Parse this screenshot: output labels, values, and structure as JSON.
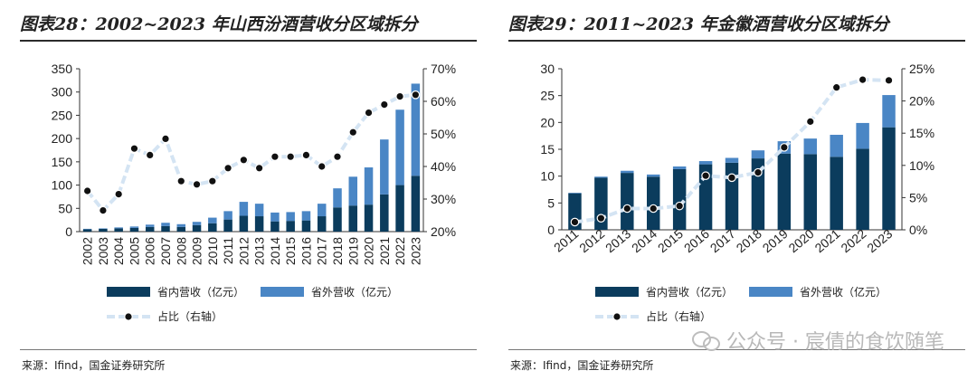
{
  "source_label": "来源：Ifind，国金证券研究所",
  "watermark": "公众号 · 宸倩的食饮随笔",
  "colors": {
    "domestic": "#0b3c5d",
    "foreign": "#4a86c5",
    "ratio_line": "#d4e4f3",
    "marker": "#111111"
  },
  "chart_data": [
    {
      "type": "bar",
      "stacked": true,
      "title": "图表28：2002~2023 年山西汾酒营收分区域拆分",
      "categories": [
        "2002",
        "2003",
        "2004",
        "2005",
        "2006",
        "2007",
        "2008",
        "2009",
        "2010",
        "2011",
        "2012",
        "2013",
        "2014",
        "2015",
        "2016",
        "2017",
        "2018",
        "2019",
        "2020",
        "2021",
        "2022",
        "2023"
      ],
      "series": [
        {
          "name": "省内营收（亿元）",
          "axis": "left",
          "values": [
            5,
            6,
            7,
            8,
            10,
            12,
            10,
            14,
            18,
            26,
            34,
            33,
            22,
            23,
            24,
            33,
            52,
            56,
            58,
            80,
            100,
            120
          ]
        },
        {
          "name": "省外营收（亿元）",
          "axis": "left",
          "values": [
            1,
            1,
            2,
            3,
            5,
            7,
            6,
            7,
            12,
            18,
            30,
            27,
            19,
            19,
            20,
            27,
            41,
            62,
            80,
            118,
            162,
            198
          ]
        },
        {
          "name": "占比（右轴）",
          "type": "line",
          "axis": "right",
          "values": [
            32.5,
            26.5,
            31.5,
            45.5,
            43.5,
            48.5,
            35.5,
            34.5,
            35.5,
            39.5,
            42.0,
            39.5,
            43.0,
            43.0,
            43.5,
            40.0,
            43.0,
            50.5,
            56.5,
            59.0,
            61.5,
            62.0
          ]
        }
      ],
      "y_left": {
        "min": 0,
        "max": 350,
        "ticks": [
          "0",
          "50",
          "100",
          "150",
          "200",
          "250",
          "300",
          "350"
        ]
      },
      "y_right": {
        "min": 20,
        "max": 70,
        "ticks": [
          "20%",
          "30%",
          "40%",
          "50%",
          "60%",
          "70%"
        ]
      },
      "legend": {
        "position": "bottom"
      }
    },
    {
      "type": "bar",
      "stacked": true,
      "title": "图表29：2011~2023 年金徽酒营收分区域拆分",
      "categories": [
        "2011",
        "2012",
        "2013",
        "2014",
        "2015",
        "2016",
        "2017",
        "2018",
        "2019",
        "2020",
        "2021",
        "2022",
        "2023"
      ],
      "series": [
        {
          "name": "省内营收（亿元）",
          "axis": "left",
          "values": [
            6.8,
            9.7,
            10.6,
            9.9,
            11.3,
            12.2,
            12.5,
            13.3,
            14.2,
            14.1,
            13.6,
            15.1,
            19.1
          ]
        },
        {
          "name": "省外营收（亿元）",
          "axis": "left",
          "values": [
            0.1,
            0.2,
            0.4,
            0.4,
            0.5,
            0.6,
            0.9,
            1.5,
            2.3,
            2.9,
            4.1,
            4.8,
            6.0
          ]
        },
        {
          "name": "占比（右轴）",
          "type": "line",
          "axis": "right",
          "values": [
            1.2,
            1.8,
            3.3,
            3.3,
            3.7,
            8.4,
            8.1,
            8.9,
            12.8,
            16.8,
            22.1,
            23.3,
            23.2
          ]
        }
      ],
      "y_left": {
        "min": 0,
        "max": 30,
        "ticks": [
          "0",
          "5",
          "10",
          "15",
          "20",
          "25",
          "30"
        ]
      },
      "y_right": {
        "min": 0,
        "max": 25,
        "ticks": [
          "0%",
          "5%",
          "10%",
          "15%",
          "20%",
          "25%"
        ]
      },
      "legend": {
        "position": "bottom"
      }
    }
  ]
}
